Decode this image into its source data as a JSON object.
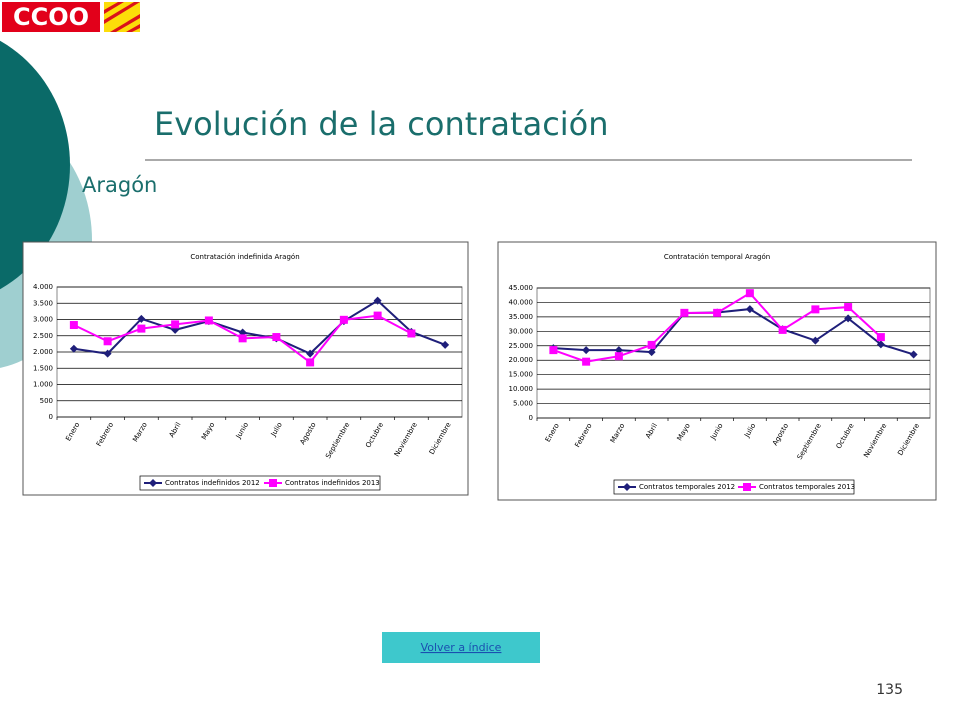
{
  "slide": {
    "logo": "CCOO",
    "title": "Evolución de la contratación",
    "subtitle": "Aragón",
    "link": "Volver a índice",
    "page": "135"
  },
  "chart_data": [
    {
      "type": "line",
      "title": "Contratación indefinida Aragón",
      "categories": [
        "Enero",
        "Febrero",
        "Marzo",
        "Abril",
        "Mayo",
        "Junio",
        "Julio",
        "Agosto",
        "Septiembre",
        "Octubre",
        "Noviembre",
        "Diciembre"
      ],
      "series": [
        {
          "name": "Contratos indefinidos 2012",
          "color": "#1f1f7a",
          "marker": "diamond",
          "values": [
            2100,
            1950,
            3020,
            2680,
            2950,
            2600,
            2420,
            1950,
            2950,
            3580,
            2620,
            2220
          ]
        },
        {
          "name": "Contratos indefinidos 2013",
          "color": "#ff00ff",
          "marker": "square",
          "values": [
            2830,
            2330,
            2720,
            2850,
            2970,
            2420,
            2460,
            1680,
            2990,
            3120,
            2570,
            null
          ]
        }
      ],
      "ylim": [
        0,
        4000
      ],
      "yticks": [
        0,
        500,
        {
          "value": 1000,
          "label": "1.000"
        },
        {
          "value": 1500,
          "label": "1.500"
        },
        {
          "value": 2000,
          "label": "2.000"
        },
        {
          "value": 2500,
          "label": "2.500"
        },
        {
          "value": 3000,
          "label": "3.000"
        },
        {
          "value": 3500,
          "label": "3.500"
        },
        {
          "value": 4000,
          "label": "4.000"
        }
      ],
      "grid": true,
      "legend": "bottom"
    },
    {
      "type": "line",
      "title": "Contratación temporal Aragón",
      "categories": [
        "Enero",
        "Febrero",
        "Marzo",
        "Abril",
        "Mayo",
        "Junio",
        "Julio",
        "Agosto",
        "Septiembre",
        "Octubre",
        "Noviembre",
        "Diciembre"
      ],
      "series": [
        {
          "name": "Contratos temporales 2012",
          "color": "#1f1f7a",
          "marker": "diamond",
          "values": [
            24200,
            23500,
            23500,
            22800,
            36300,
            36500,
            37700,
            30700,
            26800,
            34500,
            25500,
            22000
          ]
        },
        {
          "name": "Contratos temporales 2013",
          "color": "#ff00ff",
          "marker": "square",
          "values": [
            23500,
            19500,
            21400,
            25300,
            36400,
            36400,
            43200,
            30500,
            37600,
            38400,
            28000,
            null
          ]
        }
      ],
      "ylim": [
        0,
        45000
      ],
      "yticks": [
        0,
        {
          "value": 5000,
          "label": "5.000"
        },
        {
          "value": 10000,
          "label": "10.000"
        },
        {
          "value": 15000,
          "label": "15.000"
        },
        {
          "value": 20000,
          "label": "20.000"
        },
        {
          "value": 25000,
          "label": "25.000"
        },
        {
          "value": 30000,
          "label": "30.000"
        },
        {
          "value": 35000,
          "label": "35.000"
        },
        {
          "value": 40000,
          "label": "40.000"
        },
        {
          "value": 45000,
          "label": "45.000"
        }
      ],
      "grid": true,
      "legend": "bottom"
    }
  ]
}
